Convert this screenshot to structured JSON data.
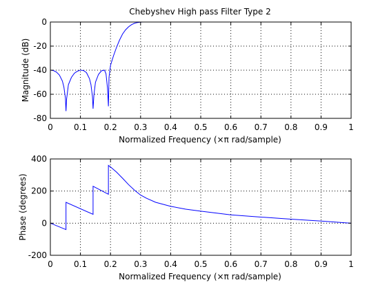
{
  "chart_data": [
    {
      "type": "line",
      "title": "Chebyshev High pass Filter Type 2",
      "xlabel": "Normalized Frequency  (×π rad/sample)",
      "ylabel": "Magnitude (dB)",
      "xlim": [
        0,
        1
      ],
      "ylim": [
        -80,
        0
      ],
      "xticks": [
        0,
        0.1,
        0.2,
        0.3,
        0.4,
        0.5,
        0.6,
        0.7,
        0.8,
        0.9,
        1
      ],
      "xtick_labels": [
        "0",
        "0.1",
        "0.2",
        "0.3",
        "0.4",
        "0.5",
        "0.6",
        "0.7",
        "0.8",
        "0.9",
        "1"
      ],
      "yticks": [
        0,
        -20,
        -40,
        -60,
        -80
      ],
      "ytick_labels": [
        "0",
        "-20",
        "-40",
        "-60",
        "-80"
      ],
      "grid": true,
      "line_color": "#0000ff",
      "series": [
        {
          "x": [
            0,
            0.01,
            0.02,
            0.03,
            0.04,
            0.045,
            0.05,
            0.052,
            0.054,
            0.06,
            0.07,
            0.08,
            0.09,
            0.1,
            0.11,
            0.12,
            0.13,
            0.135,
            0.14,
            0.142,
            0.145,
            0.15,
            0.16,
            0.17,
            0.18,
            0.185,
            0.19,
            0.193,
            0.195,
            0.2,
            0.21,
            0.22,
            0.23,
            0.24,
            0.25,
            0.26,
            0.27,
            0.28,
            0.29,
            0.3,
            0.31,
            0.32
          ],
          "y": [
            -40,
            -40.3,
            -41.5,
            -44,
            -49,
            -54,
            -63,
            -74,
            -64,
            -52,
            -46,
            -42.5,
            -40.8,
            -40,
            -40.3,
            -42,
            -47,
            -52,
            -62,
            -72,
            -60,
            -50,
            -43.5,
            -40.5,
            -40,
            -43,
            -55,
            -70,
            -46,
            -36,
            -28,
            -21,
            -15,
            -10,
            -6.5,
            -4,
            -2.2,
            -1,
            -0.4,
            -0.1,
            0,
            0
          ]
        }
      ]
    },
    {
      "type": "line",
      "title": "",
      "xlabel": "Normalized Frequency  (×π rad/sample)",
      "ylabel": "Phase (degrees)",
      "xlim": [
        0,
        1
      ],
      "ylim": [
        -200,
        400
      ],
      "xticks": [
        0,
        0.1,
        0.2,
        0.3,
        0.4,
        0.5,
        0.6,
        0.7,
        0.8,
        0.9,
        1
      ],
      "xtick_labels": [
        "0",
        "0.1",
        "0.2",
        "0.3",
        "0.4",
        "0.5",
        "0.6",
        "0.7",
        "0.8",
        "0.9",
        "1"
      ],
      "yticks": [
        400,
        200,
        0,
        -200
      ],
      "ytick_labels": [
        "400",
        "200",
        "0",
        "-200"
      ],
      "grid": true,
      "line_color": "#0000ff",
      "series": [
        {
          "x": [
            0,
            0.052,
            0.052,
            0.142,
            0.142,
            0.193,
            0.193,
            0.2,
            0.22,
            0.24,
            0.26,
            0.28,
            0.3,
            0.32,
            0.35,
            0.4,
            0.45,
            0.5,
            0.6,
            0.7,
            0.8,
            0.9,
            1.0
          ],
          "y": [
            0,
            -40,
            130,
            55,
            230,
            180,
            360,
            350,
            318,
            280,
            240,
            205,
            175,
            155,
            130,
            105,
            87,
            75,
            52,
            38,
            25,
            13,
            0
          ]
        }
      ]
    }
  ]
}
